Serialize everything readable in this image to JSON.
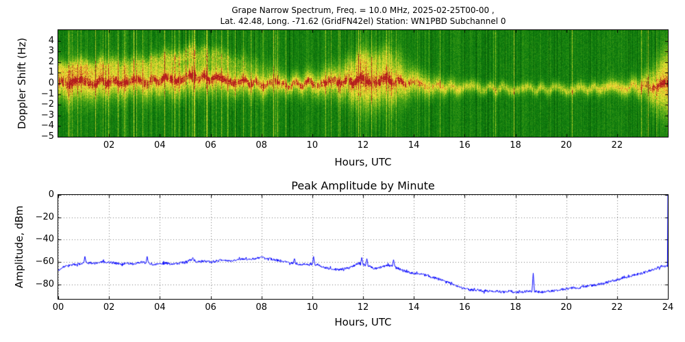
{
  "figure": {
    "background": "#ffffff",
    "frame_color": "#000000"
  },
  "chart_data": [
    {
      "name": "spectrogram",
      "type": "heatmap",
      "title_line1": "Grape Narrow Spectrum, Freq. = 10.0 MHz, 2025-02-25T00-00 ,",
      "title_line2": "Lat.  42.48, Long. -71.62 (GridFN42el) Station: WN1PBD Subchannel 0",
      "xlabel": "Hours, UTC",
      "ylabel": "Doppler Shift (Hz)",
      "xlim": [
        0,
        24
      ],
      "ylim": [
        -5,
        5
      ],
      "xticks": [
        "02",
        "04",
        "06",
        "08",
        "10",
        "12",
        "14",
        "16",
        "18",
        "20",
        "22"
      ],
      "xtick_values": [
        2,
        4,
        6,
        8,
        10,
        12,
        14,
        16,
        18,
        20,
        22
      ],
      "yticks": [
        "4",
        "3",
        "2",
        "1",
        "0",
        "−1",
        "−2",
        "−3",
        "−4",
        "−5"
      ],
      "ytick_values": [
        4,
        3,
        2,
        1,
        0,
        -1,
        -2,
        -3,
        -4,
        -5
      ],
      "colormap": [
        [
          0,
          "#003c00"
        ],
        [
          0.3,
          "#0f7d0f"
        ],
        [
          0.5,
          "#55aa18"
        ],
        [
          0.68,
          "#c8d228"
        ],
        [
          0.8,
          "#f0e63c"
        ],
        [
          0.9,
          "#e69628"
        ],
        [
          1,
          "#b41e1e"
        ]
      ],
      "band_hours": [
        0,
        1,
        2,
        3,
        4,
        5,
        6,
        7,
        8,
        9,
        10,
        11,
        12,
        13,
        14,
        15,
        16,
        17,
        18,
        19,
        20,
        21,
        22,
        23,
        24
      ],
      "band_center": [
        0.0,
        0.1,
        0.2,
        0.1,
        0.3,
        0.6,
        0.5,
        0.2,
        0.0,
        -0.1,
        0.0,
        0.1,
        0.3,
        0.3,
        0.0,
        -0.3,
        -0.4,
        -0.5,
        -0.5,
        -0.5,
        -0.5,
        -0.5,
        -0.4,
        -0.3,
        -0.1
      ],
      "band_sigma": [
        1.1,
        1.2,
        1.1,
        1.0,
        1.1,
        1.1,
        1.0,
        0.9,
        0.8,
        0.7,
        0.8,
        1.0,
        1.7,
        1.5,
        0.9,
        0.6,
        0.45,
        0.4,
        0.38,
        0.38,
        0.4,
        0.45,
        0.5,
        0.7,
        2.2
      ],
      "band_intensity": [
        0.5,
        0.5,
        0.48,
        0.46,
        0.5,
        0.5,
        0.48,
        0.45,
        0.42,
        0.4,
        0.42,
        0.46,
        0.55,
        0.5,
        0.4,
        0.35,
        0.3,
        0.28,
        0.27,
        0.27,
        0.28,
        0.3,
        0.33,
        0.38,
        0.55
      ],
      "core_intensity": [
        0.4,
        0.42,
        0.4,
        0.38,
        0.42,
        0.4,
        0.38,
        0.36,
        0.34,
        0.3,
        0.34,
        0.38,
        0.42,
        0.4,
        0.28,
        0.18,
        0.12,
        0.1,
        0.09,
        0.09,
        0.1,
        0.12,
        0.15,
        0.2,
        0.35
      ],
      "stripe_density": [
        0.6,
        0.6,
        0.55,
        0.5,
        0.55,
        0.6,
        0.5,
        0.45,
        0.55,
        0.45,
        0.4,
        0.55,
        0.6,
        0.45,
        0.3,
        0.18,
        0.1,
        0.08,
        0.08,
        0.08,
        0.1,
        0.12,
        0.15,
        0.25,
        0.35
      ],
      "wisp_intensity": [
        0.22,
        0.25,
        0.25,
        0.22,
        0.3,
        0.32,
        0.28,
        0.2,
        0.08,
        0,
        0,
        0,
        0.15,
        0.12,
        0,
        0,
        0,
        0,
        0,
        0,
        0,
        0,
        0,
        0,
        0
      ],
      "wisp_offset": [
        1.3,
        1.4,
        1.6,
        1.6,
        1.9,
        2.2,
        2.2,
        1.9,
        1.6,
        1.5,
        1.5,
        1.5,
        2.0,
        2.5,
        2.0,
        1.5,
        1.5,
        1.5,
        1.5,
        1.5,
        1.5,
        1.5,
        1.5,
        1.5,
        1.5
      ],
      "description": "Green Doppler spectrogram with yellow/red band near 0 Hz, vertical interference stripes dense 00-14 UTC, broadening near 12 UTC and at far right edge, thin quiet trace near -0.5 Hz from 16-22 UTC"
    },
    {
      "name": "amplitude",
      "type": "line",
      "title": "Peak Amplitude by Minute",
      "xlabel": "Hours, UTC",
      "ylabel": "Amplitude, dBm",
      "xlim": [
        0,
        24
      ],
      "ylim": [
        -93,
        0
      ],
      "xticks": [
        "00",
        "02",
        "04",
        "06",
        "08",
        "10",
        "12",
        "14",
        "16",
        "18",
        "20",
        "22",
        "24"
      ],
      "xtick_values": [
        0,
        2,
        4,
        6,
        8,
        10,
        12,
        14,
        16,
        18,
        20,
        22,
        24
      ],
      "yticks": [
        "0",
        "−20",
        "−40",
        "−60",
        "−80"
      ],
      "ytick_values": [
        0,
        -20,
        -40,
        -60,
        -80
      ],
      "x_start": 0,
      "x_step": 0.25,
      "values": [
        -67,
        -64,
        -63,
        -62,
        -61,
        -61,
        -61,
        -60,
        -60,
        -61,
        -62,
        -61,
        -62,
        -60,
        -61,
        -62,
        -62,
        -61,
        -62,
        -61,
        -60,
        -58,
        -60,
        -59,
        -60,
        -59,
        -58,
        -59,
        -58,
        -57,
        -58,
        -57,
        -56,
        -57,
        -58,
        -59,
        -60,
        -61,
        -62,
        -62,
        -62,
        -63,
        -65,
        -66,
        -67,
        -66,
        -65,
        -62,
        -62,
        -64,
        -66,
        -64,
        -63,
        -64,
        -67,
        -69,
        -70,
        -71,
        -72,
        -74,
        -75,
        -77,
        -80,
        -82,
        -84,
        -85,
        -85,
        -86,
        -86,
        -86,
        -87,
        -86,
        -87,
        -87,
        -86,
        -86,
        -87,
        -86,
        -86,
        -85,
        -84,
        -83,
        -83,
        -82,
        -81,
        -80,
        -79,
        -77,
        -76,
        -74,
        -73,
        -71,
        -70,
        -68,
        -66,
        -64,
        0
      ],
      "spikes": [
        {
          "h": 1.05,
          "v": -55
        },
        {
          "h": 3.5,
          "v": -55
        },
        {
          "h": 5.3,
          "v": -56
        },
        {
          "h": 8.0,
          "v": -55
        },
        {
          "h": 9.3,
          "v": -57
        },
        {
          "h": 10.05,
          "v": -55
        },
        {
          "h": 11.95,
          "v": -56
        },
        {
          "h": 12.15,
          "v": -57
        },
        {
          "h": 13.2,
          "v": -58
        },
        {
          "h": 18.7,
          "v": -70
        }
      ],
      "minute_noise_db": 1.1,
      "line_color": "#0000ff",
      "grid_color": "#777777"
    }
  ]
}
